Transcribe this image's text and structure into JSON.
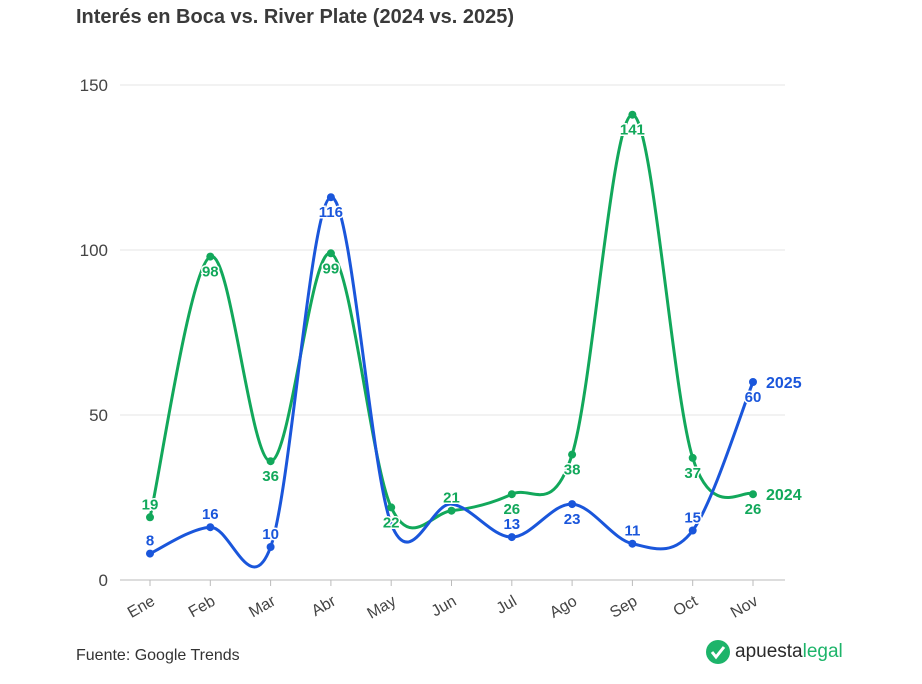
{
  "chart_data": {
    "type": "line",
    "title": "Interés en Boca vs. River Plate (2024 vs. 2025)",
    "xlabel": "",
    "ylabel": "",
    "categories": [
      "Ene",
      "Feb",
      "Mar",
      "Abr",
      "May",
      "Jun",
      "Jul",
      "Ago",
      "Sep",
      "Oct",
      "Nov"
    ],
    "ylim": [
      0,
      150
    ],
    "yticks": [
      "0",
      "50",
      "100",
      "150"
    ],
    "grid": true,
    "series": [
      {
        "name": "2024",
        "color": "#12a85b",
        "values": [
          19,
          98,
          36,
          99,
          22,
          21,
          26,
          38,
          141,
          37,
          26
        ]
      },
      {
        "name": "2025",
        "color": "#1a56db",
        "values": [
          8,
          16,
          10,
          116,
          17,
          23,
          13,
          23,
          11,
          15,
          60
        ],
        "hidden_labels": [
          4,
          5
        ]
      }
    ],
    "legend": "end-of-line labels"
  },
  "source": "Fuente: Google Trends",
  "logo": {
    "part1": "apuesta",
    "part2": "legal"
  }
}
